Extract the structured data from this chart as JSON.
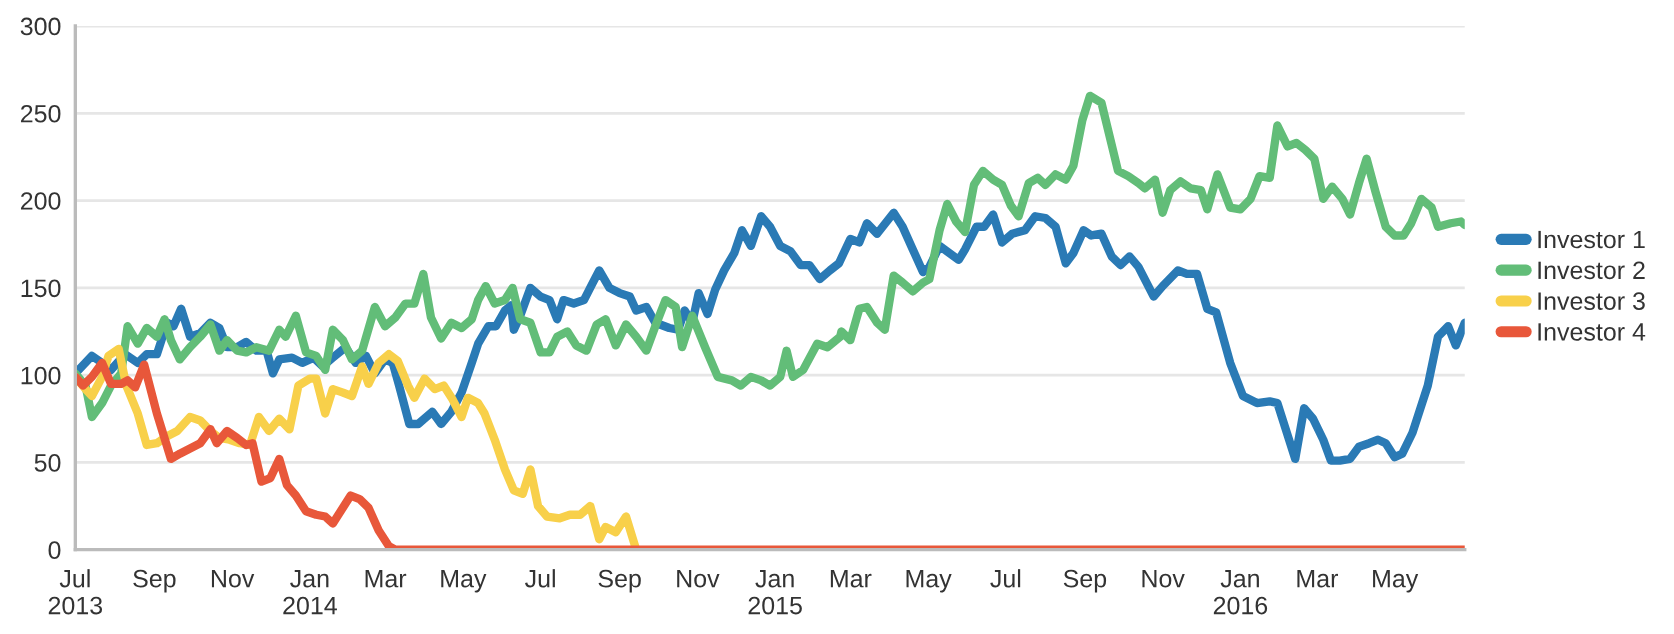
{
  "chart_data": {
    "type": "line",
    "xlim": [
      "2013-07-01",
      "2016-06-25"
    ],
    "xticks": [
      {
        "value": "2013-07-01",
        "label": "Jul\n2013"
      },
      {
        "value": "2013-09-01",
        "label": "Sep"
      },
      {
        "value": "2013-11-01",
        "label": "Nov"
      },
      {
        "value": "2014-01-01",
        "label": "Jan\n2014"
      },
      {
        "value": "2014-03-01",
        "label": "Mar"
      },
      {
        "value": "2014-05-01",
        "label": "May"
      },
      {
        "value": "2014-07-01",
        "label": "Jul"
      },
      {
        "value": "2014-09-01",
        "label": "Sep"
      },
      {
        "value": "2014-11-01",
        "label": "Nov"
      },
      {
        "value": "2015-01-01",
        "label": "Jan\n2015"
      },
      {
        "value": "2015-03-01",
        "label": "Mar"
      },
      {
        "value": "2015-05-01",
        "label": "May"
      },
      {
        "value": "2015-07-01",
        "label": "Jul"
      },
      {
        "value": "2015-09-01",
        "label": "Sep"
      },
      {
        "value": "2015-11-01",
        "label": "Nov"
      },
      {
        "value": "2016-01-01",
        "label": "Jan\n2016"
      },
      {
        "value": "2016-03-01",
        "label": "Mar"
      },
      {
        "value": "2016-05-01",
        "label": "May"
      }
    ],
    "ylim": [
      0,
      300
    ],
    "yticks": [
      0,
      50,
      100,
      150,
      200,
      250,
      300
    ],
    "grid": "y",
    "legend": "right",
    "marker": "none",
    "line_style": "solid",
    "series": [
      {
        "name": "Investor 1",
        "color": "#2a7ab5",
        "x": [
          "2013-07-01",
          "2013-07-14",
          "2013-07-22",
          "2013-07-29",
          "2013-08-09",
          "2013-08-19",
          "2013-08-26",
          "2013-09-03",
          "2013-09-11",
          "2013-09-16",
          "2013-09-22",
          "2013-09-29",
          "2013-10-07",
          "2013-10-15",
          "2013-10-22",
          "2013-10-28",
          "2013-11-05",
          "2013-11-12",
          "2013-11-20",
          "2013-11-28",
          "2013-12-03",
          "2013-12-08",
          "2013-12-18",
          "2013-12-26",
          "2014-01-04",
          "2014-01-11",
          "2014-01-19",
          "2014-01-29",
          "2014-02-06",
          "2014-02-14",
          "2014-02-21",
          "2014-03-01",
          "2014-03-07",
          "2014-03-12",
          "2014-03-20",
          "2014-03-27",
          "2014-04-07",
          "2014-04-14",
          "2014-04-22",
          "2014-04-30",
          "2014-05-08",
          "2014-05-13",
          "2014-05-21",
          "2014-05-27",
          "2014-06-03",
          "2014-06-08",
          "2014-06-10",
          "2014-06-15",
          "2014-06-23",
          "2014-07-01",
          "2014-07-08",
          "2014-07-14",
          "2014-07-19",
          "2014-07-27",
          "2014-08-04",
          "2014-08-11",
          "2014-08-16",
          "2014-08-24",
          "2014-09-01",
          "2014-09-09",
          "2014-09-14",
          "2014-09-22",
          "2014-09-29",
          "2014-10-10",
          "2014-10-17",
          "2014-10-22",
          "2014-10-28",
          "2014-11-02",
          "2014-11-09",
          "2014-11-15",
          "2014-11-22",
          "2014-11-30",
          "2014-12-06",
          "2014-12-13",
          "2014-12-21",
          "2014-12-28",
          "2015-01-05",
          "2015-01-13",
          "2015-01-21",
          "2015-01-28",
          "2015-02-05",
          "2015-02-13",
          "2015-02-20",
          "2015-03-01",
          "2015-03-08",
          "2015-03-14",
          "2015-03-22",
          "2015-04-04",
          "2015-04-11",
          "2015-04-19",
          "2015-04-27",
          "2015-05-02",
          "2015-05-10",
          "2015-05-25",
          "2015-05-30",
          "2015-06-08",
          "2015-06-14",
          "2015-06-21",
          "2015-06-28",
          "2015-07-06",
          "2015-07-16",
          "2015-07-24",
          "2015-08-01",
          "2015-08-09",
          "2015-08-17",
          "2015-08-23",
          "2015-08-31",
          "2015-09-06",
          "2015-09-14",
          "2015-09-22",
          "2015-09-29",
          "2015-10-06",
          "2015-10-13",
          "2015-10-25",
          "2015-11-01",
          "2015-11-13",
          "2015-11-20",
          "2015-11-28",
          "2015-12-06",
          "2015-12-13",
          "2015-12-24",
          "2016-01-03",
          "2016-01-14",
          "2016-01-24",
          "2016-01-30",
          "2016-02-13",
          "2016-02-20",
          "2016-02-27",
          "2016-03-06",
          "2016-03-12",
          "2016-03-19",
          "2016-03-27",
          "2016-04-03",
          "2016-04-11",
          "2016-04-18",
          "2016-04-24",
          "2016-05-01",
          "2016-05-07",
          "2016-05-15",
          "2016-05-27",
          "2016-06-04",
          "2016-06-12",
          "2016-06-18",
          "2016-06-25"
        ],
        "values": [
          101,
          111,
          107,
          103,
          112,
          107,
          112,
          112,
          130,
          128,
          138,
          122,
          124,
          130,
          127,
          116,
          116,
          119,
          114,
          114,
          101,
          109,
          110,
          107,
          110,
          105,
          110,
          116,
          107,
          111,
          101,
          109,
          107,
          94,
          72,
          72,
          79,
          72,
          79,
          90,
          107,
          118,
          128,
          128,
          137,
          140,
          126,
          134,
          150,
          145,
          143,
          132,
          143,
          141,
          143,
          153,
          160,
          150,
          147,
          145,
          137,
          139,
          130,
          127,
          126,
          137,
          130,
          147,
          135,
          149,
          160,
          170,
          183,
          174,
          191,
          185,
          174,
          171,
          163,
          163,
          155,
          160,
          164,
          178,
          176,
          187,
          181,
          193,
          185,
          172,
          159,
          162,
          174,
          166,
          172,
          185,
          185,
          192,
          176,
          181,
          183,
          191,
          190,
          185,
          164,
          170,
          183,
          180,
          181,
          168,
          163,
          168,
          162,
          145,
          151,
          160,
          158,
          158,
          138,
          136,
          107,
          88,
          84,
          85,
          84,
          52,
          81,
          75,
          63,
          51,
          51,
          52,
          59,
          61,
          63,
          61,
          53,
          55,
          67,
          94,
          122,
          128,
          117,
          130
        ]
      },
      {
        "name": "Investor 2",
        "color": "#62bd78",
        "x": [
          "2013-07-01",
          "2013-07-09",
          "2013-07-14",
          "2013-07-22",
          "2013-07-29",
          "2013-08-06",
          "2013-08-11",
          "2013-08-19",
          "2013-08-26",
          "2013-09-03",
          "2013-09-09",
          "2013-09-14",
          "2013-09-21",
          "2013-09-29",
          "2013-10-07",
          "2013-10-15",
          "2013-10-22",
          "2013-10-28",
          "2013-11-05",
          "2013-11-12",
          "2013-11-20",
          "2013-11-30",
          "2013-12-08",
          "2013-12-13",
          "2013-12-21",
          "2013-12-29",
          "2014-01-06",
          "2014-01-13",
          "2014-01-19",
          "2014-01-27",
          "2014-02-03",
          "2014-02-11",
          "2014-02-21",
          "2014-03-01",
          "2014-03-09",
          "2014-03-17",
          "2014-03-24",
          "2014-03-31",
          "2014-04-06",
          "2014-04-14",
          "2014-04-22",
          "2014-04-30",
          "2014-05-08",
          "2014-05-13",
          "2014-05-19",
          "2014-05-26",
          "2014-06-03",
          "2014-06-09",
          "2014-06-15",
          "2014-06-23",
          "2014-07-01",
          "2014-07-08",
          "2014-07-14",
          "2014-07-22",
          "2014-07-29",
          "2014-08-06",
          "2014-08-14",
          "2014-08-21",
          "2014-08-29",
          "2014-09-06",
          "2014-09-14",
          "2014-09-22",
          "2014-09-29",
          "2014-10-07",
          "2014-10-15",
          "2014-10-20",
          "2014-10-28",
          "2014-11-07",
          "2014-11-17",
          "2014-11-28",
          "2014-12-05",
          "2014-12-13",
          "2014-12-21",
          "2014-12-28",
          "2015-01-05",
          "2015-01-10",
          "2015-01-15",
          "2015-01-23",
          "2015-02-03",
          "2015-02-11",
          "2015-02-21",
          "2015-02-22",
          "2015-03-01",
          "2015-03-08",
          "2015-03-14",
          "2015-03-22",
          "2015-03-28",
          "2015-04-04",
          "2015-04-11",
          "2015-04-19",
          "2015-04-27",
          "2015-05-02",
          "2015-05-10",
          "2015-05-16",
          "2015-05-23",
          "2015-05-30",
          "2015-06-06",
          "2015-06-13",
          "2015-06-21",
          "2015-06-28",
          "2015-07-05",
          "2015-07-11",
          "2015-07-19",
          "2015-07-26",
          "2015-08-01",
          "2015-08-09",
          "2015-08-17",
          "2015-08-23",
          "2015-08-30",
          "2015-09-05",
          "2015-09-14",
          "2015-09-19",
          "2015-09-27",
          "2015-10-05",
          "2015-10-13",
          "2015-10-18",
          "2015-10-26",
          "2015-11-01",
          "2015-11-07",
          "2015-11-15",
          "2015-11-23",
          "2015-12-01",
          "2015-12-06",
          "2015-12-14",
          "2015-12-24",
          "2016-01-01",
          "2016-01-09",
          "2016-01-16",
          "2016-01-24",
          "2016-01-30",
          "2016-02-07",
          "2016-02-14",
          "2016-02-21",
          "2016-02-28",
          "2016-03-06",
          "2016-03-13",
          "2016-03-21",
          "2016-03-27",
          "2016-04-03",
          "2016-04-09",
          "2016-04-16",
          "2016-04-24",
          "2016-05-01",
          "2016-05-08",
          "2016-05-14",
          "2016-05-22",
          "2016-05-30",
          "2016-06-04",
          "2016-06-14",
          "2016-06-22",
          "2016-06-25"
        ],
        "values": [
          101,
          94,
          76,
          84,
          94,
          101,
          128,
          118,
          127,
          122,
          132,
          120,
          109,
          116,
          122,
          129,
          114,
          120,
          114,
          113,
          116,
          114,
          126,
          122,
          134,
          113,
          111,
          103,
          126,
          120,
          109,
          114,
          139,
          128,
          133,
          141,
          141,
          158,
          133,
          121,
          130,
          127,
          132,
          143,
          151,
          141,
          143,
          150,
          132,
          130,
          113,
          113,
          122,
          125,
          117,
          114,
          129,
          132,
          117,
          129,
          122,
          114,
          128,
          143,
          139,
          116,
          134,
          116,
          99,
          97,
          94,
          99,
          97,
          94,
          99,
          114,
          99,
          103,
          118,
          116,
          122,
          125,
          120,
          138,
          139,
          130,
          126,
          157,
          153,
          148,
          153,
          155,
          183,
          198,
          188,
          182,
          209,
          217,
          212,
          209,
          197,
          191,
          210,
          213,
          209,
          215,
          212,
          220,
          246,
          260,
          256,
          241,
          217,
          214,
          210,
          207,
          212,
          193,
          206,
          211,
          207,
          206,
          195,
          215,
          196,
          195,
          201,
          214,
          213,
          243,
          231,
          233,
          229,
          224,
          201,
          208,
          201,
          192,
          210,
          224,
          205,
          185,
          180,
          180,
          187,
          201,
          196,
          185,
          187,
          188,
          186
        ]
      },
      {
        "name": "Investor 3",
        "color": "#f8d04a",
        "x": [
          "2013-07-01",
          "2013-07-09",
          "2013-07-14",
          "2013-07-22",
          "2013-07-27",
          "2013-08-04",
          "2013-08-10",
          "2013-08-19",
          "2013-08-26",
          "2013-09-03",
          "2013-09-11",
          "2013-09-19",
          "2013-09-29",
          "2013-10-07",
          "2013-10-15",
          "2013-10-22",
          "2013-10-30",
          "2013-11-07",
          "2013-11-15",
          "2013-11-22",
          "2013-11-30",
          "2013-12-08",
          "2013-12-16",
          "2013-12-23",
          "2014-01-01",
          "2014-01-06",
          "2014-01-13",
          "2014-01-19",
          "2014-01-27",
          "2014-02-03",
          "2014-02-11",
          "2014-02-16",
          "2014-02-24",
          "2014-03-04",
          "2014-03-11",
          "2014-03-19",
          "2014-03-24",
          "2014-04-01",
          "2014-04-09",
          "2014-04-16",
          "2014-04-23",
          "2014-04-30",
          "2014-05-05",
          "2014-05-13",
          "2014-05-18",
          "2014-05-26",
          "2014-06-03",
          "2014-06-10",
          "2014-06-17",
          "2014-06-23",
          "2014-06-29",
          "2014-07-06",
          "2014-07-16",
          "2014-07-24",
          "2014-08-01",
          "2014-08-09",
          "2014-08-16",
          "2014-08-21",
          "2014-08-29",
          "2014-09-06",
          "2014-09-14"
        ],
        "values": [
          99,
          92,
          88,
          99,
          111,
          115,
          94,
          78,
          60,
          61,
          65,
          68,
          76,
          74,
          68,
          64,
          63,
          61,
          60,
          76,
          68,
          75,
          69,
          94,
          98,
          98,
          78,
          92,
          90,
          88,
          105,
          95,
          107,
          112,
          108,
          94,
          87,
          98,
          92,
          94,
          86,
          76,
          87,
          84,
          78,
          63,
          46,
          34,
          32,
          46,
          25,
          19,
          18,
          20,
          20,
          25,
          6,
          13,
          10,
          19,
          0
        ]
      },
      {
        "name": "Investor 4",
        "color": "#e8573a",
        "x": [
          "2013-07-01",
          "2013-07-07",
          "2013-07-14",
          "2013-07-22",
          "2013-07-29",
          "2013-08-06",
          "2013-08-11",
          "2013-08-17",
          "2013-08-24",
          "2013-09-03",
          "2013-09-14",
          "2013-09-21",
          "2013-09-29",
          "2013-10-07",
          "2013-10-15",
          "2013-10-20",
          "2013-10-28",
          "2013-11-05",
          "2013-11-12",
          "2013-11-17",
          "2013-11-24",
          "2013-12-01",
          "2013-12-08",
          "2013-12-14",
          "2013-12-21",
          "2013-12-29",
          "2014-01-06",
          "2014-01-13",
          "2014-01-19",
          "2014-01-26",
          "2014-02-02",
          "2014-02-09",
          "2014-02-16",
          "2014-02-24",
          "2014-03-04",
          "2014-03-09",
          "2016-06-25"
        ],
        "values": [
          99,
          94,
          99,
          107,
          95,
          95,
          97,
          93,
          106,
          78,
          52,
          55,
          58,
          61,
          69,
          61,
          68,
          64,
          60,
          61,
          39,
          41,
          52,
          37,
          31,
          22,
          20,
          19,
          15,
          23,
          31,
          29,
          24,
          11,
          2,
          0,
          0
        ]
      }
    ]
  }
}
